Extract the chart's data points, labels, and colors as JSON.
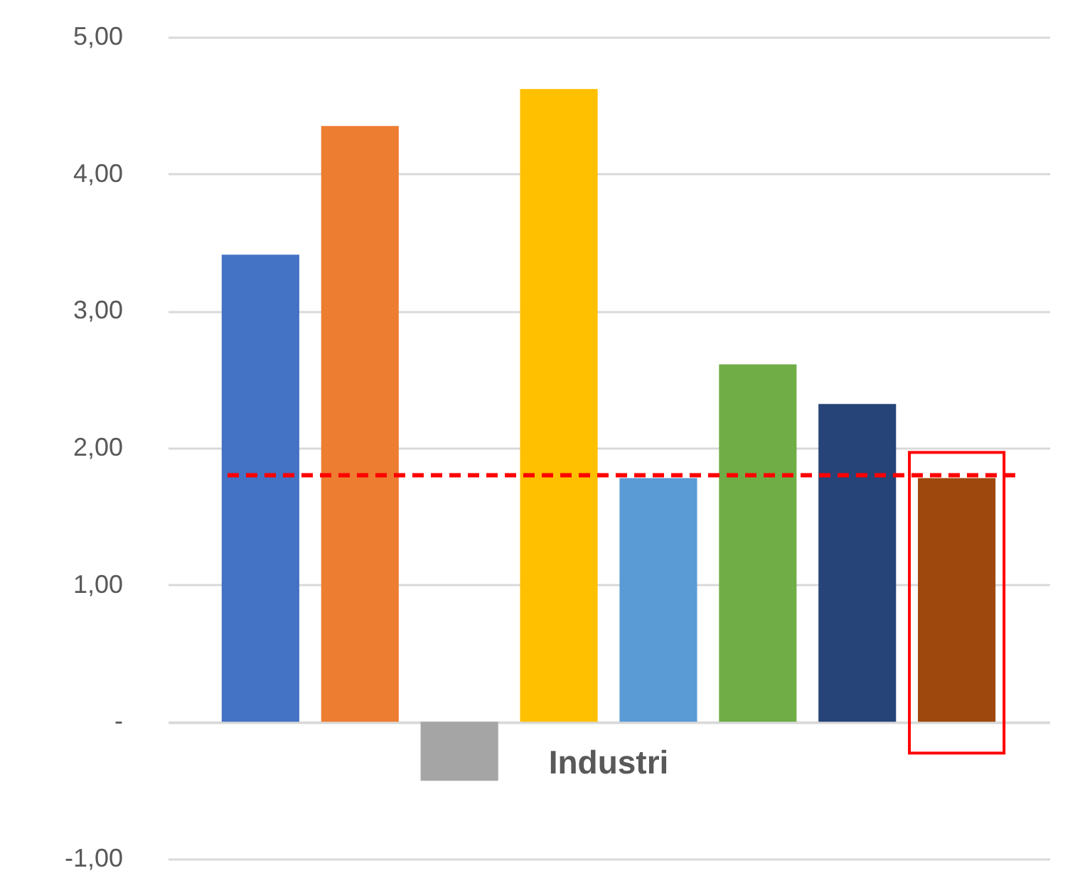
{
  "chart_data": {
    "type": "bar",
    "categories": [
      "Industri"
    ],
    "series": [
      {
        "color": "#4472c4",
        "values": [
          3.41
        ]
      },
      {
        "color": "#ed7d31",
        "values": [
          4.35
        ]
      },
      {
        "color": "#a5a5a5",
        "values": [
          -0.43
        ]
      },
      {
        "color": "#ffc000",
        "values": [
          4.62
        ]
      },
      {
        "color": "#5b9bd5",
        "values": [
          1.78
        ]
      },
      {
        "color": "#70ad47",
        "values": [
          2.61
        ]
      },
      {
        "color": "#264478",
        "values": [
          2.32
        ]
      },
      {
        "color": "#9e480e",
        "values": [
          1.78
        ]
      }
    ],
    "ylim": [
      -1,
      5
    ],
    "yticks": [
      {
        "value": -1,
        "label": "-1,00"
      },
      {
        "value": 0,
        "label": "-"
      },
      {
        "value": 1,
        "label": "1,00"
      },
      {
        "value": 2,
        "label": "2,00"
      },
      {
        "value": 3,
        "label": "3,00"
      },
      {
        "value": 4,
        "label": "4,00"
      },
      {
        "value": 5,
        "label": "5,00"
      }
    ],
    "ref_lines": [
      {
        "axis": "y",
        "value": 1.8,
        "color": "#ff0000",
        "line_style": "dashed"
      }
    ],
    "grid": "y"
  }
}
